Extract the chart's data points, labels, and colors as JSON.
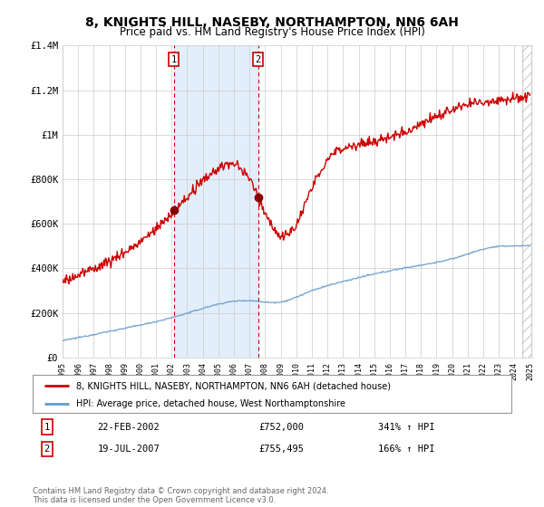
{
  "title": "8, KNIGHTS HILL, NASEBY, NORTHAMPTON, NN6 6AH",
  "subtitle": "Price paid vs. HM Land Registry's House Price Index (HPI)",
  "title_fontsize": 10,
  "subtitle_fontsize": 8.5,
  "background_color": "#ffffff",
  "plot_bg_color": "#ffffff",
  "grid_color": "#cccccc",
  "hpi_color": "#6699cc",
  "price_color": "#cc0000",
  "ylim": [
    0,
    1400000
  ],
  "yticks": [
    0,
    200000,
    400000,
    600000,
    800000,
    1000000,
    1200000,
    1400000
  ],
  "ytick_labels": [
    "£0",
    "£200K",
    "£400K",
    "£600K",
    "£800K",
    "£1M",
    "£1.2M",
    "£1.4M"
  ],
  "year_start": 1995,
  "year_end": 2025,
  "sale1_year": 2002.14,
  "sale1_price": 752000,
  "sale2_year": 2007.55,
  "sale2_price": 755495,
  "vline1_year": 2002.14,
  "vline2_year": 2007.55,
  "legend_line1": "8, KNIGHTS HILL, NASEBY, NORTHAMPTON, NN6 6AH (detached house)",
  "legend_line2": "HPI: Average price, detached house, West Northamptonshire",
  "table_row1_num": "1",
  "table_row1_date": "22-FEB-2002",
  "table_row1_price": "£752,000",
  "table_row1_hpi": "341% ↑ HPI",
  "table_row2_num": "2",
  "table_row2_date": "19-JUL-2007",
  "table_row2_price": "£755,495",
  "table_row2_hpi": "166% ↑ HPI",
  "footer": "Contains HM Land Registry data © Crown copyright and database right 2024.\nThis data is licensed under the Open Government Licence v3.0."
}
